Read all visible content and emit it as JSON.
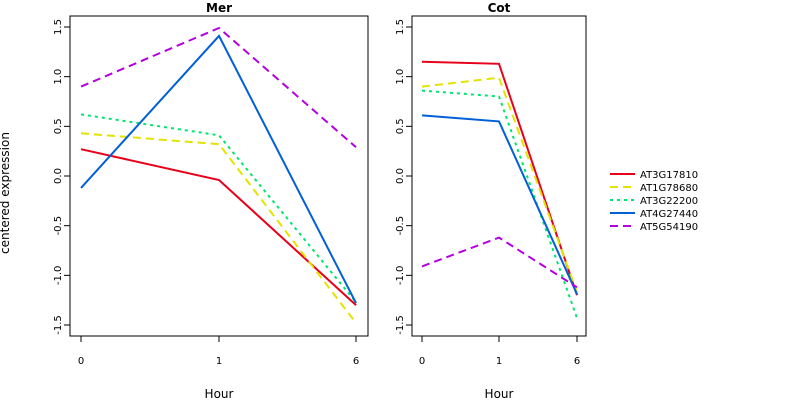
{
  "ylabel": "centered expression",
  "xlabel": "Hour",
  "x_ticks": [
    "0",
    "1",
    "6"
  ],
  "y_ticks": [
    "-1.5",
    "-1.0",
    "-0.5",
    "0.0",
    "0.5",
    "1.0",
    "1.5"
  ],
  "colors": {
    "AT3G17810": "#e8001a",
    "AT1G78680": "#e3e300",
    "AT3G22200": "#00e56e",
    "AT4G27440": "#0060d8",
    "AT5G54190": "#b400e0"
  },
  "chart_data": [
    {
      "type": "line",
      "title": "Mer",
      "categories": [
        "0",
        "1",
        "6"
      ],
      "ylim": [
        -1.5,
        1.5
      ],
      "series": [
        {
          "name": "AT3G17810",
          "values": [
            0.27,
            -0.04,
            -1.3
          ]
        },
        {
          "name": "AT1G78680",
          "values": [
            0.43,
            0.32,
            -1.48
          ]
        },
        {
          "name": "AT3G22200",
          "values": [
            0.62,
            0.41,
            -1.27
          ]
        },
        {
          "name": "AT4G27440",
          "values": [
            -0.12,
            1.41,
            -1.28
          ]
        },
        {
          "name": "AT5G54190",
          "values": [
            0.9,
            1.49,
            0.29
          ]
        }
      ]
    },
    {
      "type": "line",
      "title": "Cot",
      "categories": [
        "0",
        "1",
        "6"
      ],
      "ylim": [
        -1.5,
        1.5
      ],
      "series": [
        {
          "name": "AT3G17810",
          "values": [
            1.15,
            1.13,
            -1.2
          ]
        },
        {
          "name": "AT1G78680",
          "values": [
            0.9,
            0.99,
            -1.17
          ]
        },
        {
          "name": "AT3G22200",
          "values": [
            0.86,
            0.8,
            -1.43
          ]
        },
        {
          "name": "AT4G27440",
          "values": [
            0.61,
            0.55,
            -1.19
          ]
        },
        {
          "name": "AT5G54190",
          "values": [
            -0.91,
            -0.62,
            -1.12
          ]
        }
      ]
    }
  ],
  "legend": {
    "placement": "right",
    "entries": [
      "AT3G17810",
      "AT1G78680",
      "AT3G22200",
      "AT4G27440",
      "AT5G54190"
    ]
  }
}
